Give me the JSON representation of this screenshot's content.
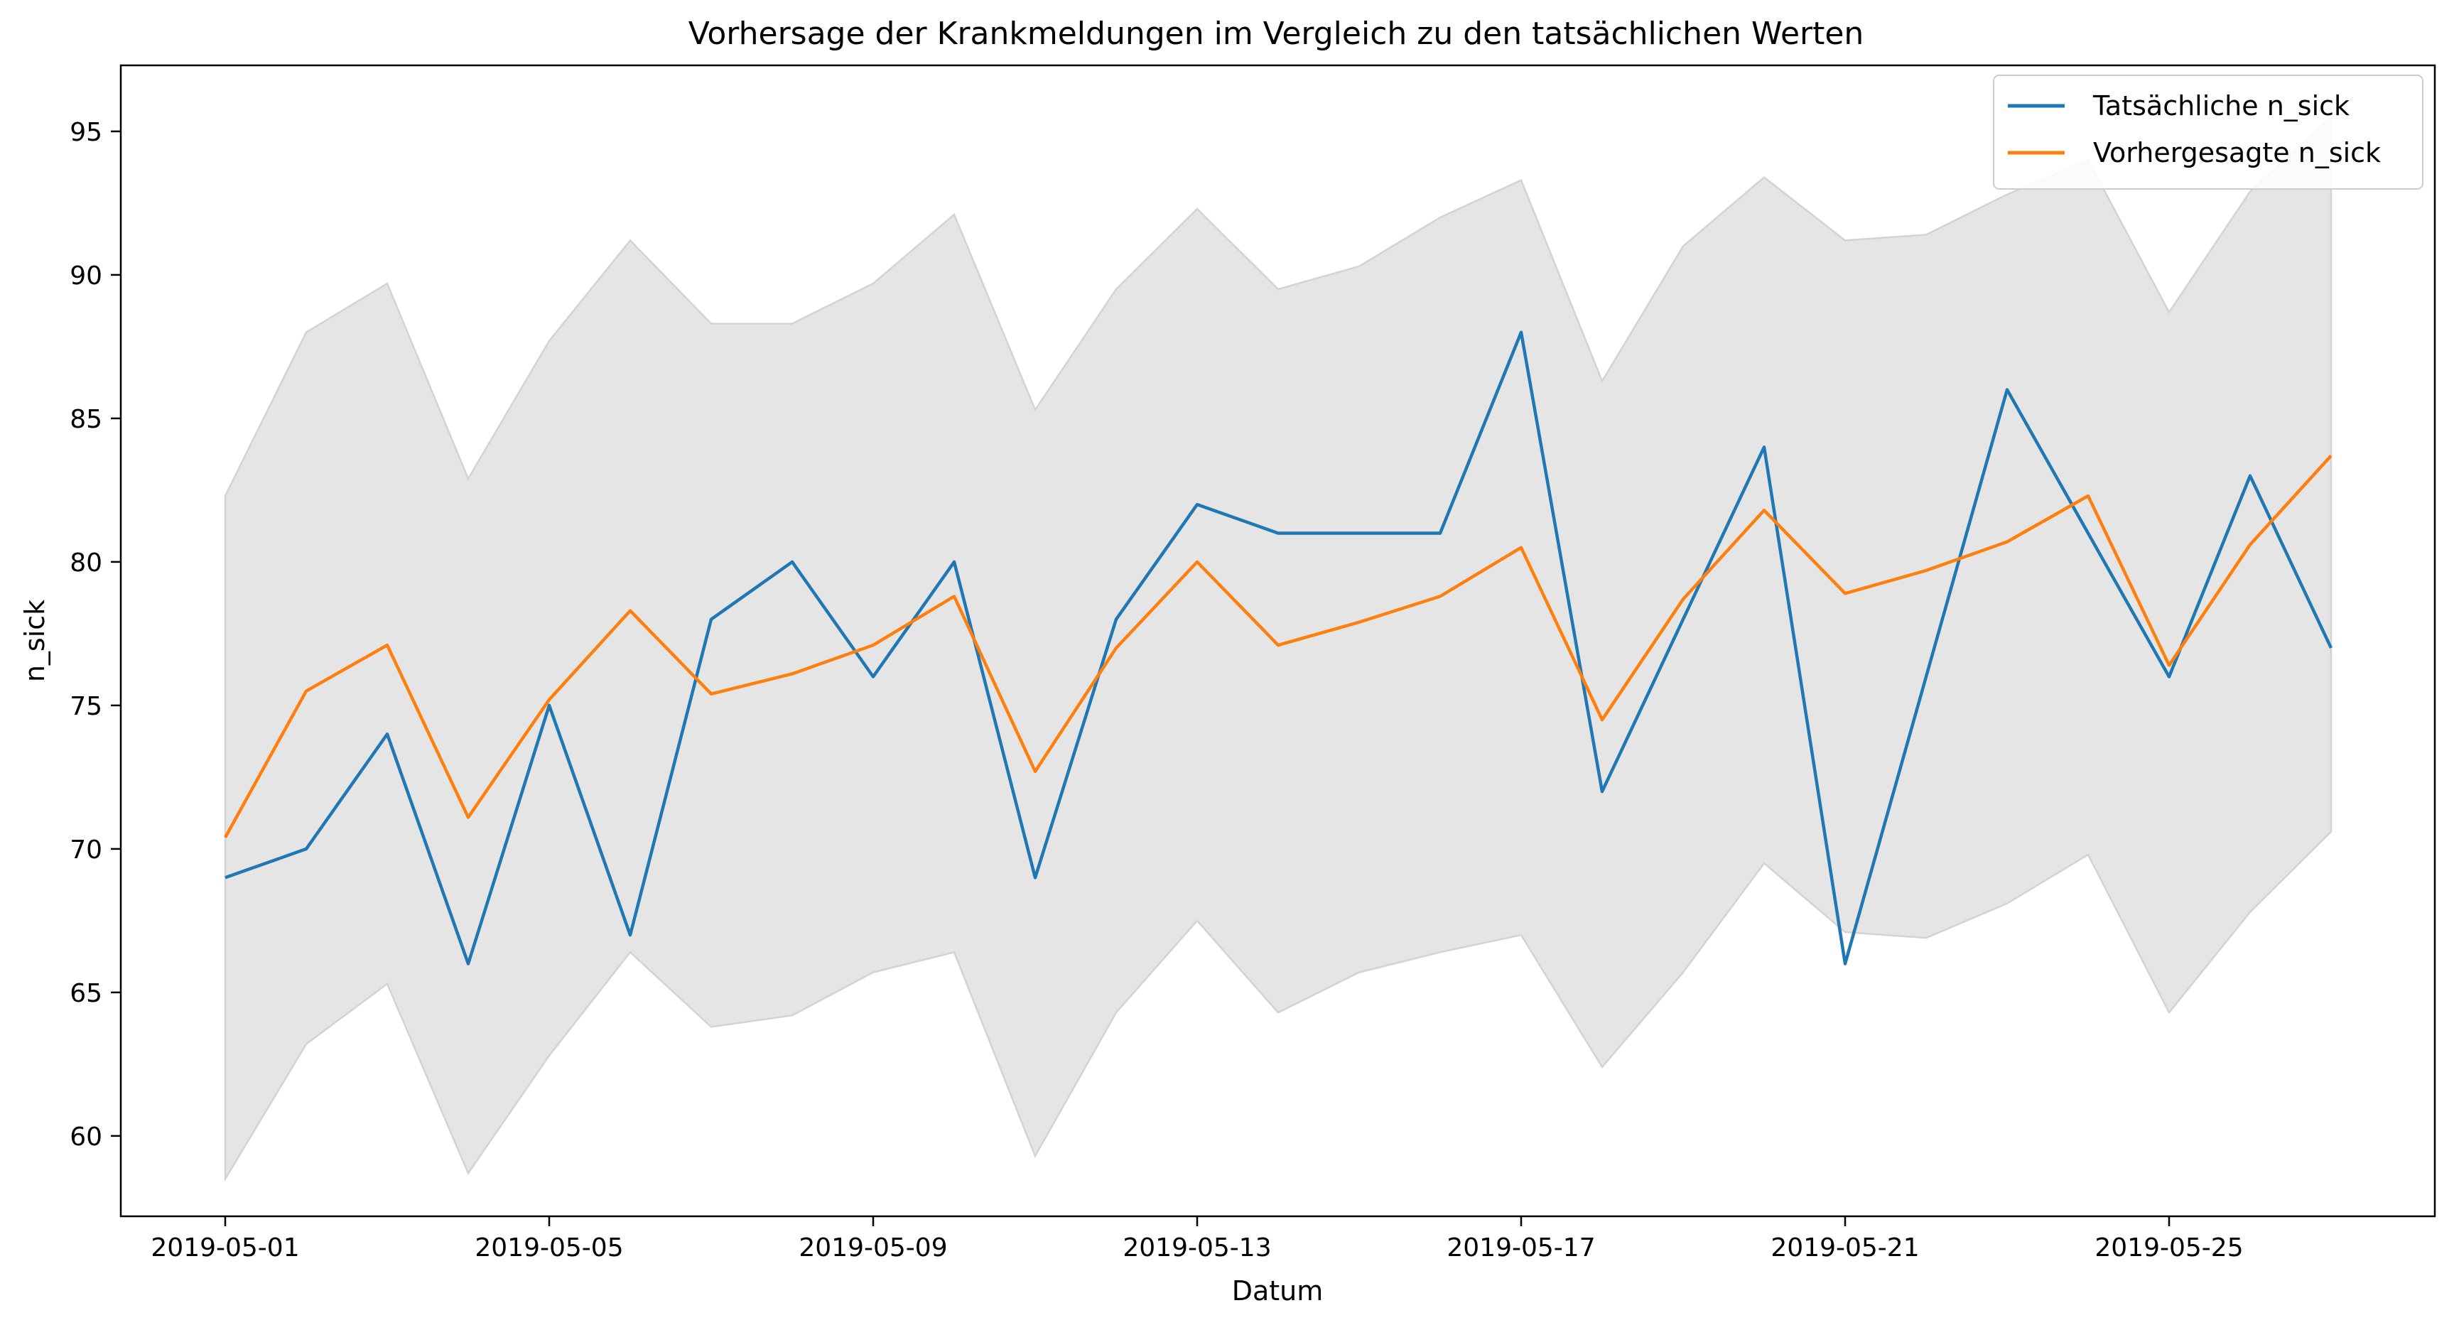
{
  "chart_data": {
    "type": "line",
    "title": "Vorhersage der Krankmeldungen im Vergleich zu den tatsächlichen Werten",
    "xlabel": "Datum",
    "ylabel": "n_sick",
    "x": [
      "2019-05-01",
      "2019-05-02",
      "2019-05-03",
      "2019-05-04",
      "2019-05-05",
      "2019-05-06",
      "2019-05-07",
      "2019-05-08",
      "2019-05-09",
      "2019-05-10",
      "2019-05-11",
      "2019-05-12",
      "2019-05-13",
      "2019-05-14",
      "2019-05-15",
      "2019-05-16",
      "2019-05-17",
      "2019-05-18",
      "2019-05-19",
      "2019-05-20",
      "2019-05-21",
      "2019-05-22",
      "2019-05-23",
      "2019-05-24",
      "2019-05-25",
      "2019-05-26",
      "2019-05-27"
    ],
    "x_ticks": [
      "2019-05-01",
      "2019-05-05",
      "2019-05-09",
      "2019-05-13",
      "2019-05-17",
      "2019-05-21",
      "2019-05-25"
    ],
    "y_ticks": [
      60,
      65,
      70,
      75,
      80,
      85,
      90,
      95
    ],
    "ylim": [
      57.2,
      97.3
    ],
    "xlim": [
      "2019-04-29.7",
      "2019-05-28.3"
    ],
    "grid": false,
    "legend_position": "upper right",
    "series": [
      {
        "name": "Tatsächliche n_sick",
        "color": "#1f77b4",
        "values": [
          69,
          70,
          74,
          66,
          75,
          67,
          78,
          80,
          76,
          80,
          69,
          78,
          82,
          81,
          81,
          81,
          88,
          72,
          78,
          84,
          66,
          76,
          86,
          81,
          76,
          83,
          77
        ]
      },
      {
        "name": "Vorhergesagte n_sick",
        "color": "#ff7f0e",
        "values": [
          70.4,
          75.5,
          77.1,
          71.1,
          75.2,
          78.3,
          75.4,
          76.1,
          77.1,
          78.8,
          72.7,
          77.0,
          80.0,
          77.1,
          77.9,
          78.8,
          80.5,
          74.5,
          78.7,
          81.8,
          78.9,
          79.7,
          80.7,
          82.3,
          76.4,
          80.6,
          83.7
        ]
      }
    ],
    "confidence_band": {
      "color": "#d3d3d3",
      "lower": [
        58.5,
        63.2,
        65.3,
        58.7,
        62.8,
        66.4,
        63.8,
        64.2,
        65.7,
        66.4,
        59.3,
        64.3,
        67.5,
        64.3,
        65.7,
        66.4,
        67.0,
        62.4,
        65.7,
        69.5,
        67.1,
        66.9,
        68.1,
        69.8,
        64.3,
        67.8,
        70.6
      ],
      "upper": [
        82.3,
        88.0,
        89.7,
        82.9,
        87.7,
        91.2,
        88.3,
        88.3,
        89.7,
        92.1,
        85.3,
        89.5,
        92.3,
        89.5,
        90.3,
        92.0,
        93.3,
        86.3,
        91.0,
        93.4,
        91.2,
        91.4,
        92.8,
        94.0,
        88.7,
        92.9,
        95.5
      ]
    }
  }
}
